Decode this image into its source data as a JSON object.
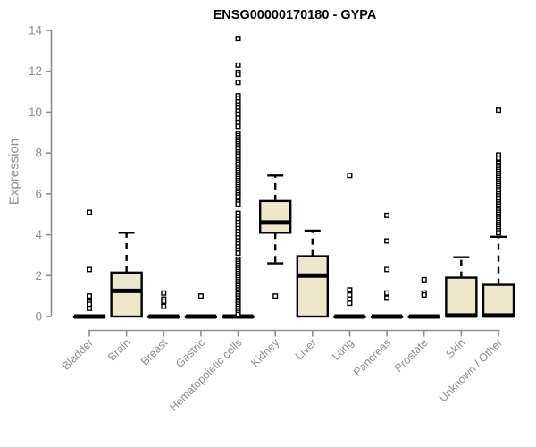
{
  "chart_data": {
    "type": "boxplot",
    "title": "ENSG00000170180 - GYPA",
    "ylabel": "Expression",
    "xlabel": "",
    "ylim": [
      0,
      14
    ],
    "yticks": [
      0,
      2,
      4,
      6,
      8,
      10,
      12,
      14
    ],
    "grid": false,
    "legend": null,
    "background": "#FFFFFF",
    "box_fill": "#EDE7CB",
    "box_stroke": "#000000",
    "axis_color": "#8E8E8E",
    "title_color": "#000000",
    "categories": [
      "Bladder",
      "Brain",
      "Breast",
      "Gastric",
      "Hematopoietic cells",
      "Kidney",
      "Liver",
      "Lung",
      "Pancreas",
      "Prostate",
      "Skin",
      "Unknown / Other"
    ],
    "boxes": [
      {
        "category": "Bladder",
        "q1": 0,
        "median": 0,
        "q3": 0,
        "whisker_low": 0,
        "whisker_high": 0,
        "outliers": [
          5.1,
          2.3,
          1.0,
          0.7,
          0.6,
          0.4
        ]
      },
      {
        "category": "Brain",
        "q1": 0,
        "median": 1.25,
        "q3": 2.15,
        "whisker_low": 0,
        "whisker_high": 4.1,
        "outliers": []
      },
      {
        "category": "Breast",
        "q1": 0,
        "median": 0,
        "q3": 0,
        "whisker_low": 0,
        "whisker_high": 0,
        "outliers": [
          1.15,
          0.85,
          0.75,
          0.5
        ]
      },
      {
        "category": "Gastric",
        "q1": 0,
        "median": 0,
        "q3": 0,
        "whisker_low": 0,
        "whisker_high": 0,
        "outliers": [
          1.0
        ]
      },
      {
        "category": "Hematopoietic cells",
        "q1": 0,
        "median": 0,
        "q3": 0,
        "whisker_low": 0,
        "whisker_high": 0,
        "outliers": [
          13.6,
          12.3,
          11.95,
          11.85,
          11.45,
          10.8,
          10.65,
          10.5,
          10.35,
          10.2,
          10.05,
          9.9,
          9.7,
          9.5,
          9.3,
          8.95,
          8.85,
          8.75,
          8.65,
          8.55,
          8.45,
          8.35,
          8.25,
          8.15,
          8.05,
          7.95,
          7.85,
          7.75,
          7.65,
          7.55,
          7.45,
          7.35,
          7.25,
          7.15,
          7.05,
          6.95,
          6.85,
          6.75,
          6.65,
          6.55,
          6.45,
          6.35,
          6.25,
          6.15,
          6.05,
          5.95,
          5.85,
          5.6,
          5.5,
          5.05,
          4.9,
          4.75,
          4.6,
          4.45,
          4.3,
          4.15,
          4.0,
          3.85,
          3.7,
          3.55,
          3.4,
          3.25,
          3.1,
          2.8,
          2.7,
          2.6,
          2.5,
          2.4,
          2.3,
          2.2,
          2.1,
          2.0,
          1.9,
          1.8,
          1.7,
          1.6,
          1.5,
          1.4,
          1.3,
          1.2,
          1.1,
          1.0,
          0.9,
          0.8,
          0.7,
          0.6,
          0.5,
          0.4,
          0.3,
          0.2,
          0.1
        ]
      },
      {
        "category": "Kidney",
        "q1": 4.1,
        "median": 4.6,
        "q3": 5.65,
        "whisker_low": 2.6,
        "whisker_high": 6.9,
        "outliers": [
          1.0
        ]
      },
      {
        "category": "Liver",
        "q1": 0,
        "median": 2.0,
        "q3": 2.95,
        "whisker_low": 0,
        "whisker_high": 4.2,
        "outliers": []
      },
      {
        "category": "Lung",
        "q1": 0,
        "median": 0,
        "q3": 0,
        "whisker_low": 0,
        "whisker_high": 0,
        "outliers": [
          6.9,
          1.3,
          1.05,
          0.85,
          0.65
        ]
      },
      {
        "category": "Pancreas",
        "q1": 0,
        "median": 0,
        "q3": 0,
        "whisker_low": 0,
        "whisker_high": 0,
        "outliers": [
          4.95,
          3.7,
          2.3,
          1.15,
          0.9
        ]
      },
      {
        "category": "Prostate",
        "q1": 0,
        "median": 0,
        "q3": 0,
        "whisker_low": 0,
        "whisker_high": 0,
        "outliers": [
          1.8,
          1.15,
          1.05
        ]
      },
      {
        "category": "Skin",
        "q1": 0,
        "median": 0.05,
        "q3": 1.9,
        "whisker_low": 0,
        "whisker_high": 2.9,
        "outliers": []
      },
      {
        "category": "Unknown / Other",
        "q1": 0,
        "median": 0.05,
        "q3": 1.55,
        "whisker_low": 0,
        "whisker_high": 3.9,
        "outliers": [
          10.1,
          7.9,
          7.75,
          7.5,
          7.4,
          7.3,
          7.2,
          7.1,
          7.0,
          6.9,
          6.8,
          6.7,
          6.6,
          6.5,
          6.4,
          6.3,
          6.2,
          6.1,
          6.0,
          5.9,
          5.8,
          5.7,
          5.6,
          5.5,
          5.4,
          5.3,
          5.2,
          5.1,
          5.0,
          4.9,
          4.8,
          4.7,
          4.6,
          4.5,
          4.4,
          4.3,
          4.2,
          4.1
        ]
      }
    ]
  }
}
